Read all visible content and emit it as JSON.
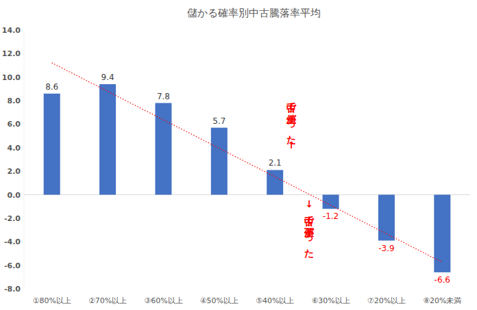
{
  "chart_data": {
    "type": "bar",
    "title": "儲かる確率別中古騰落率平均",
    "categories": [
      "①80%以上",
      "②70%以上",
      "③60%以上",
      "④50%以上",
      "⑤40%以上",
      "⑥30%以上",
      "⑦20%以上",
      "⑧20%未満"
    ],
    "values": [
      8.6,
      9.4,
      7.8,
      5.7,
      2.1,
      -1.2,
      -3.9,
      -6.6
    ],
    "color": "#4472c4",
    "ylim": [
      -8,
      14
    ],
    "yticks": [
      {
        "value": -8,
        "label": "-8.0"
      },
      {
        "value": -6,
        "label": "-6.0"
      },
      {
        "value": -4,
        "label": "-4.0"
      },
      {
        "value": -2,
        "label": "-2.0"
      },
      {
        "value": 0,
        "label": "0.0"
      },
      {
        "value": 2,
        "label": "2.0"
      },
      {
        "value": 4,
        "label": "4.0"
      },
      {
        "value": 6,
        "label": "6.0"
      },
      {
        "value": 8,
        "label": "8.0"
      },
      {
        "value": 10,
        "label": "10.0"
      },
      {
        "value": 12,
        "label": "12.0"
      },
      {
        "value": 14,
        "label": "14.0"
      }
    ],
    "grid": false,
    "data_labels": true,
    "annotations": [
      "中古で値上がった↑",
      "↓中古で値下がった"
    ]
  }
}
